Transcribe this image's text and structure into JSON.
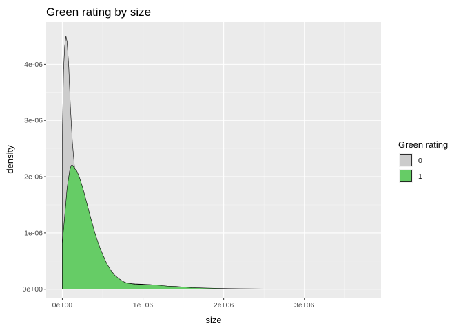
{
  "chart_data": {
    "type": "area",
    "title": "Green rating by size",
    "xlabel": "size",
    "ylabel": "density",
    "xlim": [
      -200000,
      3950000
    ],
    "ylim": [
      -1.5e-07,
      4.75e-06
    ],
    "x_ticks": [
      0,
      1000000,
      2000000,
      3000000
    ],
    "x_tick_labels": [
      "0e+00",
      "1e+06",
      "2e+06",
      "3e+06"
    ],
    "y_ticks": [
      0,
      1e-06,
      2e-06,
      3e-06,
      4e-06
    ],
    "y_tick_labels": [
      "0e+00",
      "1e-06",
      "2e-06",
      "3e-06",
      "4e-06"
    ],
    "grid": true,
    "legend": {
      "title": "Green rating",
      "position": "right"
    },
    "series": [
      {
        "name": "0",
        "color": "#cccccc",
        "x": [
          0,
          15000,
          30000,
          45000,
          60000,
          80000,
          100000,
          125000,
          150000,
          175000,
          200000,
          230000,
          260000,
          300000,
          350000,
          400000,
          450000,
          500000,
          550000,
          600000,
          650000,
          700000,
          750000,
          800000,
          900000,
          1000000,
          1100000,
          1200000,
          1300000,
          1400000,
          1500000,
          1600000,
          1700000,
          1800000,
          2000000,
          2200000,
          2400000,
          2600000,
          2800000,
          3000000,
          3200000,
          3400000,
          3600000,
          3750000
        ],
        "y": [
          2.72e-06,
          3.9e-06,
          4.32e-06,
          4.5e-06,
          4.4e-06,
          3.95e-06,
          3.25e-06,
          2.6e-06,
          2.18e-06,
          1.82e-06,
          1.55e-06,
          1.3e-06,
          1.1e-06,
          8.8e-07,
          6.8e-07,
          5.2e-07,
          4e-07,
          3.1e-07,
          2.4e-07,
          1.9e-07,
          1.55e-07,
          1.3e-07,
          1.15e-07,
          1.05e-07,
          9.5e-08,
          9e-08,
          8e-08,
          6e-08,
          4e-08,
          3e-08,
          2.5e-08,
          2e-08,
          1.5e-08,
          1.2e-08,
          8e-09,
          6e-09,
          5e-09,
          4e-09,
          4e-09,
          4e-09,
          3e-09,
          3e-09,
          4e-09,
          3e-09
        ]
      },
      {
        "name": "1",
        "color": "#66cc66",
        "x": [
          0,
          30000,
          60000,
          90000,
          110000,
          130000,
          150000,
          180000,
          210000,
          250000,
          300000,
          350000,
          400000,
          450000,
          500000,
          550000,
          600000,
          650000,
          700000,
          750000,
          800000,
          900000,
          1000000,
          1100000,
          1200000,
          1300000,
          1400000,
          1500000,
          1600000,
          1700000,
          1800000,
          2000000,
          2200000,
          2400000,
          2600000,
          2800000,
          3000000,
          3200000,
          3400000,
          3600000,
          3750000
        ],
        "y": [
          8.2e-07,
          1.3e-06,
          1.8e-06,
          2.1e-06,
          2.2e-06,
          2.2e-06,
          2.15e-06,
          2.1e-06,
          2e-06,
          1.82e-06,
          1.55e-06,
          1.28e-06,
          1.02e-06,
          8e-07,
          6.2e-07,
          4.6e-07,
          3.4e-07,
          2.5e-07,
          1.9e-07,
          1.4e-07,
          1.1e-07,
          9e-08,
          8.5e-08,
          8e-08,
          7e-08,
          5.5e-08,
          5e-08,
          4e-08,
          3e-08,
          2.5e-08,
          2e-08,
          1.2e-08,
          8e-09,
          6e-09,
          4e-09,
          3e-09,
          2e-09,
          2e-09,
          2e-09,
          1e-09,
          1e-09
        ]
      }
    ]
  }
}
